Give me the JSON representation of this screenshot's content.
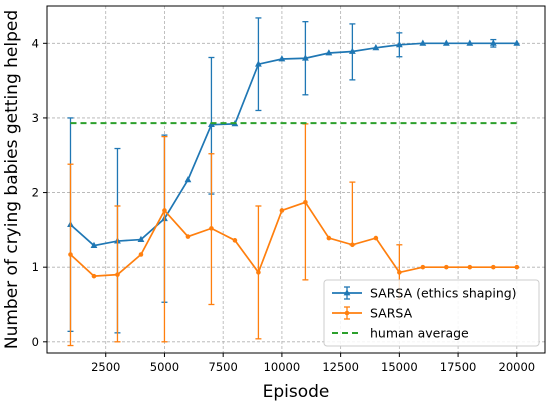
{
  "chart_data": {
    "type": "line",
    "title": "",
    "xlabel": "Episode",
    "ylabel": "Number of crying babies getting helped",
    "xlim": [
      0,
      21200
    ],
    "ylim": [
      -0.15,
      4.5
    ],
    "xticks": [
      2500,
      5000,
      7500,
      10000,
      12500,
      15000,
      17500,
      20000
    ],
    "yticks": [
      0,
      1,
      2,
      3,
      4
    ],
    "grid": true,
    "legend_position": "lower-right",
    "series": [
      {
        "name": "SARSA (ethics shaping)",
        "color": "#1f77b4",
        "marker": "triangle",
        "x": [
          1000,
          2000,
          3000,
          4000,
          5000,
          6000,
          7000,
          8000,
          9000,
          10000,
          11000,
          12000,
          13000,
          14000,
          15000,
          16000,
          17000,
          18000,
          19000,
          20000
        ],
        "y": [
          1.57,
          1.29,
          1.35,
          1.37,
          1.65,
          2.17,
          2.91,
          2.92,
          3.72,
          3.79,
          3.8,
          3.87,
          3.89,
          3.94,
          3.98,
          4.0,
          4.0,
          4.0,
          4.0,
          4.0
        ],
        "err_low": [
          0.14,
          1.29,
          0.12,
          1.37,
          0.53,
          2.17,
          1.98,
          2.92,
          3.1,
          3.79,
          3.31,
          3.87,
          3.51,
          3.94,
          3.82,
          4.0,
          4.0,
          4.0,
          3.95,
          4.0
        ],
        "err_high": [
          3.0,
          1.29,
          2.59,
          1.37,
          2.77,
          2.17,
          3.81,
          2.92,
          4.34,
          3.79,
          4.29,
          3.87,
          4.26,
          3.94,
          4.14,
          4.0,
          4.0,
          4.0,
          4.05,
          4.0
        ]
      },
      {
        "name": "SARSA",
        "color": "#ff7f0e",
        "marker": "point",
        "x": [
          1000,
          2000,
          3000,
          4000,
          5000,
          6000,
          7000,
          8000,
          9000,
          10000,
          11000,
          12000,
          13000,
          14000,
          15000,
          16000,
          17000,
          18000,
          19000,
          20000
        ],
        "y": [
          1.17,
          0.88,
          0.9,
          1.17,
          1.76,
          1.41,
          1.52,
          1.36,
          0.93,
          1.76,
          1.87,
          1.39,
          1.3,
          1.39,
          0.93,
          1.0,
          1.0,
          1.0,
          1.0,
          1.0
        ],
        "err_low": [
          -0.05,
          0.88,
          0.0,
          1.17,
          0.0,
          1.41,
          0.5,
          1.36,
          0.04,
          1.76,
          0.83,
          1.39,
          1.3,
          1.39,
          0.57,
          1.0,
          1.0,
          1.0,
          1.0,
          1.0
        ],
        "err_high": [
          2.38,
          0.88,
          1.82,
          1.17,
          2.75,
          1.41,
          2.52,
          1.36,
          1.82,
          1.76,
          2.92,
          1.39,
          2.14,
          1.39,
          1.3,
          1.0,
          1.0,
          1.0,
          1.0,
          1.0
        ]
      },
      {
        "name": "human average",
        "color": "#2ca02c",
        "style": "dashed",
        "x": [
          1000,
          20000
        ],
        "y": [
          2.93,
          2.93
        ]
      }
    ]
  }
}
